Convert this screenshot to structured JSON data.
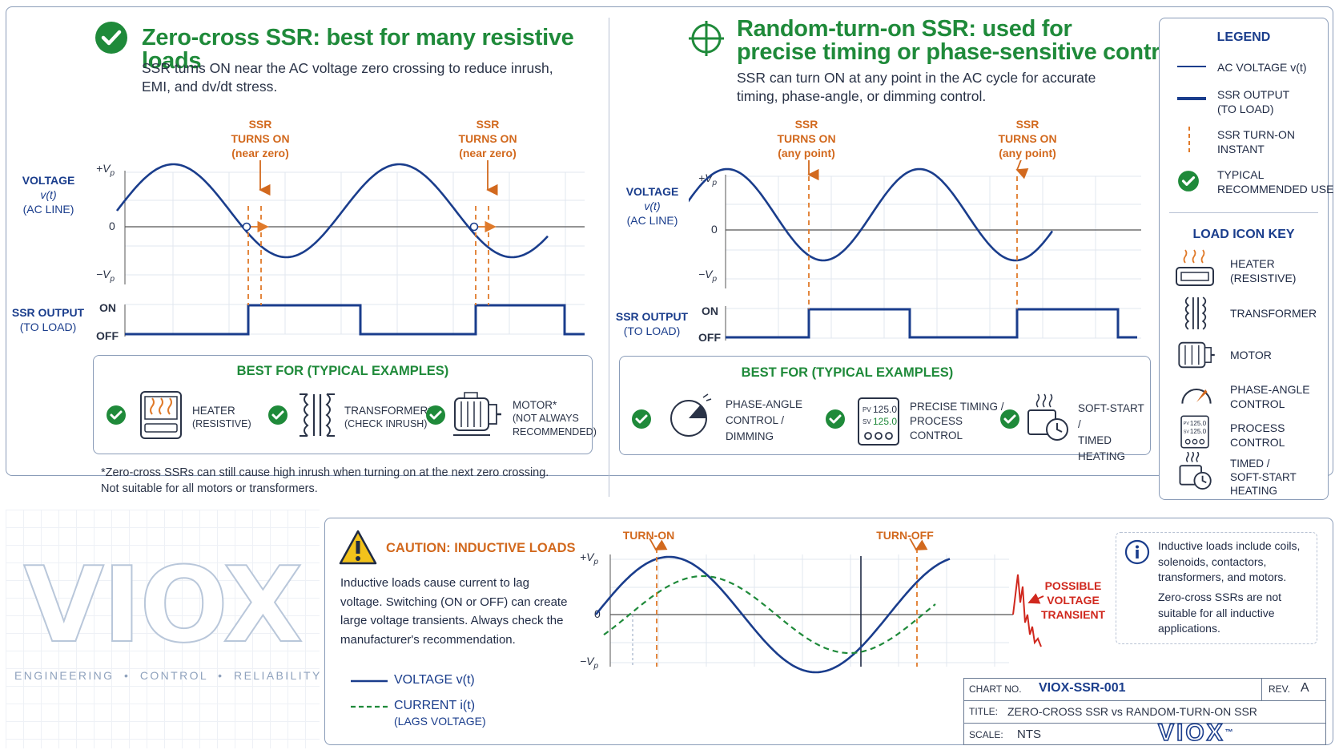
{
  "zero_cross": {
    "title": "Zero-cross SSR: best for many resistive loads",
    "subtitle": "SSR turns ON near the AC voltage zero crossing to reduce inrush, EMI, and dv/dt stress.",
    "ann1": [
      "SSR",
      "TURNS ON",
      "(near zero)"
    ],
    "ann2": [
      "SSR",
      "TURNS ON",
      "(near zero)"
    ],
    "voltage_label": [
      "VOLTAGE",
      "v(t)",
      "(AC LINE)"
    ],
    "output_label": [
      "SSR OUTPUT",
      "(TO LOAD)"
    ],
    "best_for_heading": "BEST FOR (TYPICAL EXAMPLES)",
    "examples": [
      {
        "line1": "HEATER",
        "line2": "(RESISTIVE)",
        "line3": ""
      },
      {
        "line1": "TRANSFORMER*",
        "line2": "(CHECK INRUSH)",
        "line3": ""
      },
      {
        "line1": "MOTOR*",
        "line2": "(NOT ALWAYS",
        "line3": "RECOMMENDED)"
      }
    ],
    "footnote": "*Zero-cross SSRs can still cause high inrush when turning on at the next zero crossing. Not suitable for all motors or transformers."
  },
  "random_turn_on": {
    "title_line1": "Random-turn-on SSR: used for",
    "title_line2": "precise timing or phase-sensitive control",
    "subtitle": "SSR can turn ON at any point in the AC cycle for accurate timing, phase-angle, or dimming control.",
    "ann1": [
      "SSR",
      "TURNS ON",
      "(any point)"
    ],
    "ann2": [
      "SSR",
      "TURNS ON",
      "(any point)"
    ],
    "voltage_label": [
      "VOLTAGE",
      "v(t)",
      "(AC LINE)"
    ],
    "output_label": [
      "SSR OUTPUT",
      "(TO LOAD)"
    ],
    "best_for_heading": "BEST FOR  (TYPICAL EXAMPLES)",
    "examples": [
      {
        "line1": "PHASE-ANGLE",
        "line2": "CONTROL /",
        "line3": "DIMMING"
      },
      {
        "line1": "PRECISE TIMING /",
        "line2": "PROCESS",
        "line3": "CONTROL"
      },
      {
        "line1": "SOFT-START /",
        "line2": "TIMED",
        "line3": "HEATING"
      }
    ]
  },
  "axis": {
    "vp_pos": "+V",
    "vp_neg": "−V",
    "vp_sub": "p",
    "zero": "0",
    "on": "ON",
    "off": "OFF"
  },
  "legend": {
    "heading": "LEGEND",
    "items": [
      {
        "line1": "AC VOLTAGE v(t)",
        "line2": ""
      },
      {
        "line1": "SSR OUTPUT",
        "line2": "(TO LOAD)"
      },
      {
        "line1": "SSR TURN-ON",
        "line2": "INSTANT"
      },
      {
        "line1": "TYPICAL",
        "line2": "RECOMMENDED USE"
      }
    ],
    "icon_key_heading": "LOAD ICON KEY",
    "icon_items": [
      {
        "line1": "HEATER",
        "line2": "(RESISTIVE)"
      },
      {
        "line1": "TRANSFORMER",
        "line2": ""
      },
      {
        "line1": "MOTOR",
        "line2": ""
      },
      {
        "line1": "PHASE-ANGLE",
        "line2": "CONTROL"
      },
      {
        "line1": "PROCESS",
        "line2": "CONTROL"
      },
      {
        "line1": "TIMED /",
        "line2": "SOFT-START",
        "line3": "HEATING"
      }
    ]
  },
  "pid_display": {
    "pv": "PV",
    "pv_val": "125.0",
    "sv": "SV",
    "sv_val": "125.0"
  },
  "brand": {
    "logo": "VIOX",
    "tagline": "ENGINEERING  •  CONTROL  •  RELIABILITY"
  },
  "caution": {
    "heading": "CAUTION: INDUCTIVE LOADS",
    "body": "Inductive loads cause current to lag voltage. Switching (ON or OFF) can create large voltage transients. Always check the manufacturer's recommendation.",
    "legend_voltage": "VOLTAGE v(t)",
    "legend_current": "CURRENT i(t)",
    "legend_current_note": "(LAGS VOLTAGE)",
    "turn_on": "TURN-ON",
    "turn_off": "TURN-OFF",
    "transient": [
      "POSSIBLE",
      "VOLTAGE",
      "TRANSIENT"
    ]
  },
  "info": {
    "p1": "Inductive loads include coils, solenoids, contactors, transformers, and motors.",
    "p2": "Zero-cross SSRs are not suitable for all inductive applications."
  },
  "title_block": {
    "chart_no_label": "CHART NO.",
    "chart_no": "VIOX-SSR-001",
    "rev_label": "REV.",
    "rev": "A",
    "title_label": "TITLE:",
    "title": "ZERO-CROSS SSR vs RANDOM-TURN-ON SSR",
    "scale_label": "SCALE:",
    "scale": "NTS",
    "logo": "VIOX",
    "tm": "™"
  },
  "colors": {
    "navy": "#1a3d8c",
    "green": "#1f8a3a",
    "orange": "#e07a2a",
    "red": "#d0281e"
  }
}
